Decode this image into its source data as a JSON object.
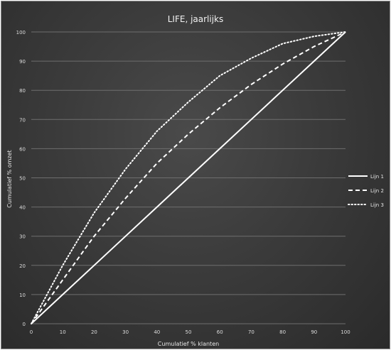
{
  "chart_data": {
    "type": "line",
    "title": "LIFE, jaarlijks",
    "xlabel": "Cumulatief % klanten",
    "ylabel": "Cumulatief % omzet",
    "xlim": [
      0,
      100
    ],
    "ylim": [
      0,
      100
    ],
    "x_ticks": [
      "0",
      "10",
      "20",
      "30",
      "40",
      "50",
      "60",
      "70",
      "80",
      "90",
      "100"
    ],
    "y_ticks": [
      "0",
      "10",
      "20",
      "30",
      "40",
      "50",
      "60",
      "70",
      "80",
      "90",
      "100"
    ],
    "grid": true,
    "legend_position": "right",
    "x": [
      0,
      10,
      20,
      30,
      40,
      50,
      60,
      70,
      80,
      90,
      100
    ],
    "series": [
      {
        "name": "Lijn 1",
        "style": "solid",
        "values": [
          0,
          10,
          20,
          30,
          40,
          50,
          60,
          70,
          80,
          90,
          100
        ]
      },
      {
        "name": "Lijn 2",
        "style": "dashed",
        "values": [
          0,
          15,
          30,
          43,
          55,
          65,
          74,
          82,
          89,
          95,
          100
        ]
      },
      {
        "name": "Lijn 3",
        "style": "dotted",
        "values": [
          0,
          20,
          38,
          53,
          66,
          76,
          85,
          91,
          96,
          98.5,
          100
        ]
      }
    ],
    "colors": {
      "line": "#ffffff",
      "grid": "#6e6e6e",
      "background": "#3a3a3a"
    }
  }
}
